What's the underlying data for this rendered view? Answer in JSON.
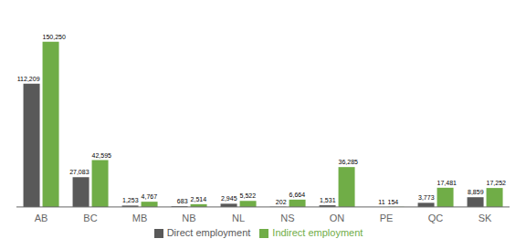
{
  "chart_data": {
    "type": "bar",
    "categories": [
      "AB",
      "BC",
      "MB",
      "NB",
      "NL",
      "NS",
      "ON",
      "PE",
      "QC",
      "SK"
    ],
    "series": [
      {
        "name": "Direct employment",
        "color": "#595959",
        "values": [
          112209,
          27083,
          1253,
          683,
          2945,
          202,
          1531,
          11,
          3773,
          8859
        ],
        "value_labels": [
          "112,209",
          "27,083",
          "1,253",
          "683",
          "2,945",
          "202",
          "1,531",
          "11",
          "3,773",
          "8,859"
        ]
      },
      {
        "name": "Indirect employment",
        "color": "#70ad47",
        "values": [
          150250,
          42595,
          4767,
          2514,
          5522,
          6664,
          36285,
          154,
          17481,
          17252
        ],
        "value_labels": [
          "150,250",
          "42,595",
          "4,767",
          "2,514",
          "5,522",
          "6,664",
          "36,285",
          "154",
          "17,481",
          "17,252"
        ]
      }
    ],
    "ylim": [
      0,
      170000
    ],
    "data_labels": true,
    "legend": "bottom",
    "tick_labels": "x",
    "grid": false
  }
}
